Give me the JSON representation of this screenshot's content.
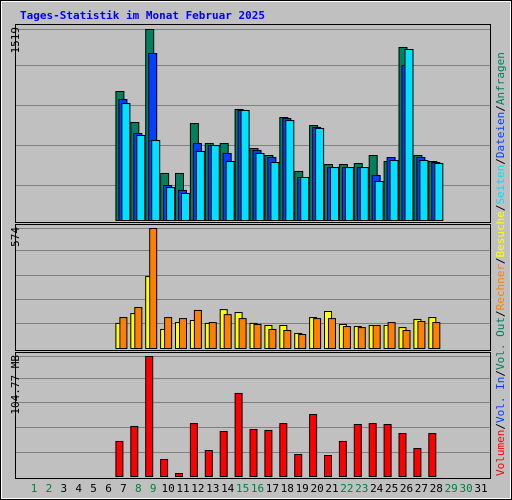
{
  "chart_data": {
    "type": "bar",
    "title": "Tages-Statistik im Monat Februar 2025",
    "categories": [
      "1",
      "2",
      "3",
      "4",
      "5",
      "6",
      "7",
      "8",
      "9",
      "10",
      "11",
      "12",
      "13",
      "14",
      "15",
      "16",
      "17",
      "18",
      "19",
      "20",
      "21",
      "22",
      "23",
      "24",
      "25",
      "26",
      "27",
      "28",
      "29",
      "30",
      "31"
    ],
    "category_colors": [
      "#008040",
      "#008040",
      "#000000",
      "#000000",
      "#000000",
      "#000000",
      "#000000",
      "#008040",
      "#008040",
      "#000000",
      "#000000",
      "#000000",
      "#000000",
      "#000000",
      "#008040",
      "#008040",
      "#000000",
      "#000000",
      "#000000",
      "#000000",
      "#000000",
      "#008040",
      "#008040",
      "#000000",
      "#000000",
      "#000000",
      "#000000",
      "#000000",
      "#008040",
      "#008040",
      "#000000"
    ],
    "legend_separator": "/",
    "panels": [
      {
        "ylim": [
          0,
          1519
        ],
        "yticks": [
          1519
        ],
        "series": [
          {
            "name": "Anfragen",
            "color": "#00805c",
            "values": [
              null,
              null,
              null,
              null,
              null,
              null,
              1026,
              779,
              1519,
              374,
              374,
              771,
              612,
              612,
              883,
              572,
              517,
              819,
              390,
              755,
              445,
              445,
              453,
              517,
              469,
              1376,
              517,
              469,
              null,
              null,
              null
            ]
          },
          {
            "name": "Dateien",
            "color": "#0040ff",
            "values": [
              null,
              null,
              null,
              null,
              null,
              null,
              962,
              692,
              1328,
              278,
              239,
              612,
              596,
              533,
              875,
              557,
              501,
              811,
              342,
              740,
              421,
              421,
              421,
              358,
              501,
              1233,
              501,
              461,
              null,
              null,
              null
            ]
          },
          {
            "name": "Seiten",
            "color": "#00e0ff",
            "values": [
              null,
              null,
              null,
              null,
              null,
              null,
              930,
              676,
              636,
              262,
              215,
              549,
              596,
              469,
              875,
              533,
              461,
              795,
              342,
              732,
              421,
              421,
              421,
              310,
              477,
              1360,
              477,
              453,
              null,
              null,
              null
            ]
          }
        ]
      },
      {
        "ylim": [
          0,
          574
        ],
        "yticks": [
          574
        ],
        "series": [
          {
            "name": "Besuche",
            "color": "#ffff00",
            "values": [
              null,
              null,
              null,
              null,
              null,
              null,
              120,
              167,
              344,
              91,
              124,
              134,
              120,
              186,
              172,
              120,
              110,
              110,
              72,
              148,
              177,
              115,
              105,
              110,
              110,
              100,
              139,
              148,
              null,
              null,
              null
            ]
          },
          {
            "name": "Rechner",
            "color": "#ff8000",
            "values": [
              null,
              null,
              null,
              null,
              null,
              null,
              148,
              196,
              574,
              148,
              143,
              182,
              124,
              162,
              143,
              115,
              91,
              86,
              67,
              143,
              143,
              105,
              100,
              110,
              124,
              86,
              129,
              124,
              null,
              null,
              null
            ]
          }
        ]
      },
      {
        "ylim": [
          0,
          104.77
        ],
        "yticks": [
          {
            "value": 104.77,
            "label": "104.77 MB"
          }
        ],
        "series": [
          {
            "name": "Volumen",
            "color": "#ff0000",
            "values": [
              null,
              null,
              null,
              null,
              null,
              null,
              30.6,
              43.7,
              104.77,
              14.8,
              2.6,
              46.2,
              22.7,
              39.3,
              72.5,
              41.0,
              40.2,
              46.2,
              19.2,
              54.1,
              18.3,
              30.6,
              45.4,
              46.2,
              45.4,
              37.5,
              24.4,
              37.5,
              null,
              null,
              null
            ]
          },
          {
            "name": "Vol. In",
            "color": "#0040ff",
            "values": [
              null,
              null,
              null,
              null,
              null,
              null,
              null,
              null,
              null,
              null,
              null,
              null,
              null,
              null,
              null,
              null,
              null,
              null,
              null,
              null,
              null,
              null,
              null,
              null,
              null,
              null,
              null,
              null,
              null,
              null,
              null
            ]
          },
          {
            "name": "Vol. Out",
            "color": "#00805c",
            "values": [
              null,
              null,
              null,
              null,
              null,
              null,
              null,
              null,
              null,
              null,
              null,
              null,
              null,
              null,
              null,
              null,
              null,
              null,
              null,
              null,
              null,
              null,
              null,
              null,
              null,
              null,
              null,
              null,
              null,
              null,
              null
            ]
          }
        ]
      }
    ]
  }
}
